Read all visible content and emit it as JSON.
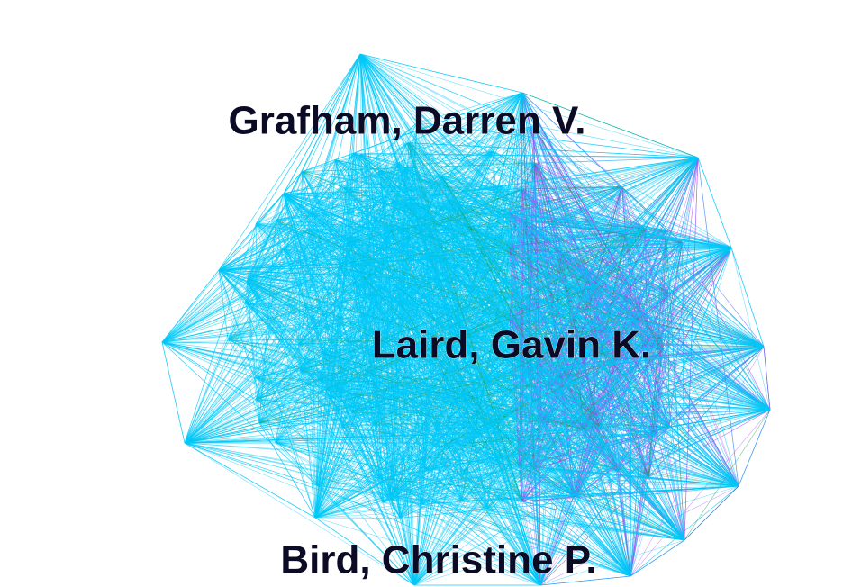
{
  "nodes": [
    {
      "label": "Grafham, Darren V."
    },
    {
      "label": "Laird, Gavin K."
    },
    {
      "label": "Bird, Christine P."
    }
  ]
}
